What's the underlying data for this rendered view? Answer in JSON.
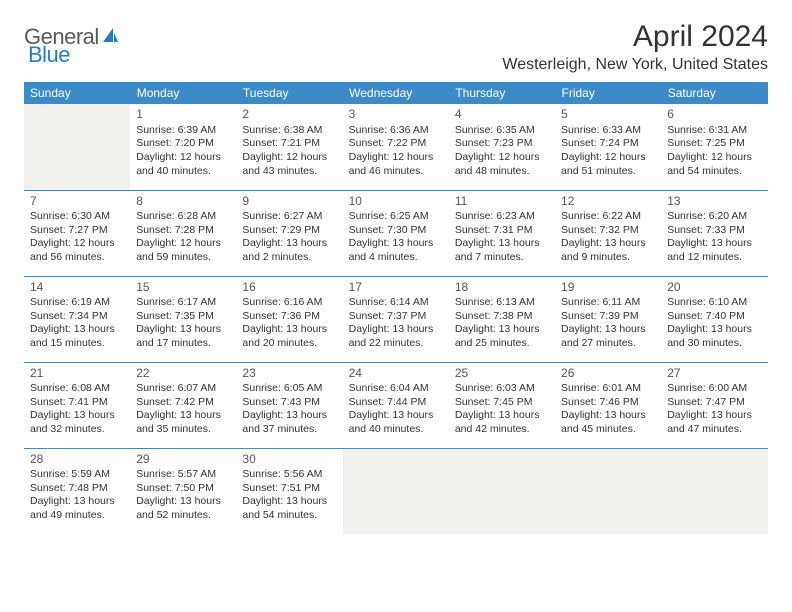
{
  "logo": {
    "part1": "General",
    "part2": "Blue"
  },
  "title": "April 2024",
  "location": "Westerleigh, New York, United States",
  "colors": {
    "header_bg": "#3b8bc9",
    "header_text": "#ffffff",
    "rule": "#3b8bc9",
    "empty_bg": "#f3f1ee",
    "text": "#333333",
    "logo_gray": "#5a5a5a",
    "logo_blue": "#2b7bbf"
  },
  "daysOfWeek": [
    "Sunday",
    "Monday",
    "Tuesday",
    "Wednesday",
    "Thursday",
    "Friday",
    "Saturday"
  ],
  "weeks": [
    [
      null,
      {
        "n": "1",
        "sr": "Sunrise: 6:39 AM",
        "ss": "Sunset: 7:20 PM",
        "d1": "Daylight: 12 hours",
        "d2": "and 40 minutes."
      },
      {
        "n": "2",
        "sr": "Sunrise: 6:38 AM",
        "ss": "Sunset: 7:21 PM",
        "d1": "Daylight: 12 hours",
        "d2": "and 43 minutes."
      },
      {
        "n": "3",
        "sr": "Sunrise: 6:36 AM",
        "ss": "Sunset: 7:22 PM",
        "d1": "Daylight: 12 hours",
        "d2": "and 46 minutes."
      },
      {
        "n": "4",
        "sr": "Sunrise: 6:35 AM",
        "ss": "Sunset: 7:23 PM",
        "d1": "Daylight: 12 hours",
        "d2": "and 48 minutes."
      },
      {
        "n": "5",
        "sr": "Sunrise: 6:33 AM",
        "ss": "Sunset: 7:24 PM",
        "d1": "Daylight: 12 hours",
        "d2": "and 51 minutes."
      },
      {
        "n": "6",
        "sr": "Sunrise: 6:31 AM",
        "ss": "Sunset: 7:25 PM",
        "d1": "Daylight: 12 hours",
        "d2": "and 54 minutes."
      }
    ],
    [
      {
        "n": "7",
        "sr": "Sunrise: 6:30 AM",
        "ss": "Sunset: 7:27 PM",
        "d1": "Daylight: 12 hours",
        "d2": "and 56 minutes."
      },
      {
        "n": "8",
        "sr": "Sunrise: 6:28 AM",
        "ss": "Sunset: 7:28 PM",
        "d1": "Daylight: 12 hours",
        "d2": "and 59 minutes."
      },
      {
        "n": "9",
        "sr": "Sunrise: 6:27 AM",
        "ss": "Sunset: 7:29 PM",
        "d1": "Daylight: 13 hours",
        "d2": "and 2 minutes."
      },
      {
        "n": "10",
        "sr": "Sunrise: 6:25 AM",
        "ss": "Sunset: 7:30 PM",
        "d1": "Daylight: 13 hours",
        "d2": "and 4 minutes."
      },
      {
        "n": "11",
        "sr": "Sunrise: 6:23 AM",
        "ss": "Sunset: 7:31 PM",
        "d1": "Daylight: 13 hours",
        "d2": "and 7 minutes."
      },
      {
        "n": "12",
        "sr": "Sunrise: 6:22 AM",
        "ss": "Sunset: 7:32 PM",
        "d1": "Daylight: 13 hours",
        "d2": "and 9 minutes."
      },
      {
        "n": "13",
        "sr": "Sunrise: 6:20 AM",
        "ss": "Sunset: 7:33 PM",
        "d1": "Daylight: 13 hours",
        "d2": "and 12 minutes."
      }
    ],
    [
      {
        "n": "14",
        "sr": "Sunrise: 6:19 AM",
        "ss": "Sunset: 7:34 PM",
        "d1": "Daylight: 13 hours",
        "d2": "and 15 minutes."
      },
      {
        "n": "15",
        "sr": "Sunrise: 6:17 AM",
        "ss": "Sunset: 7:35 PM",
        "d1": "Daylight: 13 hours",
        "d2": "and 17 minutes."
      },
      {
        "n": "16",
        "sr": "Sunrise: 6:16 AM",
        "ss": "Sunset: 7:36 PM",
        "d1": "Daylight: 13 hours",
        "d2": "and 20 minutes."
      },
      {
        "n": "17",
        "sr": "Sunrise: 6:14 AM",
        "ss": "Sunset: 7:37 PM",
        "d1": "Daylight: 13 hours",
        "d2": "and 22 minutes."
      },
      {
        "n": "18",
        "sr": "Sunrise: 6:13 AM",
        "ss": "Sunset: 7:38 PM",
        "d1": "Daylight: 13 hours",
        "d2": "and 25 minutes."
      },
      {
        "n": "19",
        "sr": "Sunrise: 6:11 AM",
        "ss": "Sunset: 7:39 PM",
        "d1": "Daylight: 13 hours",
        "d2": "and 27 minutes."
      },
      {
        "n": "20",
        "sr": "Sunrise: 6:10 AM",
        "ss": "Sunset: 7:40 PM",
        "d1": "Daylight: 13 hours",
        "d2": "and 30 minutes."
      }
    ],
    [
      {
        "n": "21",
        "sr": "Sunrise: 6:08 AM",
        "ss": "Sunset: 7:41 PM",
        "d1": "Daylight: 13 hours",
        "d2": "and 32 minutes."
      },
      {
        "n": "22",
        "sr": "Sunrise: 6:07 AM",
        "ss": "Sunset: 7:42 PM",
        "d1": "Daylight: 13 hours",
        "d2": "and 35 minutes."
      },
      {
        "n": "23",
        "sr": "Sunrise: 6:05 AM",
        "ss": "Sunset: 7:43 PM",
        "d1": "Daylight: 13 hours",
        "d2": "and 37 minutes."
      },
      {
        "n": "24",
        "sr": "Sunrise: 6:04 AM",
        "ss": "Sunset: 7:44 PM",
        "d1": "Daylight: 13 hours",
        "d2": "and 40 minutes."
      },
      {
        "n": "25",
        "sr": "Sunrise: 6:03 AM",
        "ss": "Sunset: 7:45 PM",
        "d1": "Daylight: 13 hours",
        "d2": "and 42 minutes."
      },
      {
        "n": "26",
        "sr": "Sunrise: 6:01 AM",
        "ss": "Sunset: 7:46 PM",
        "d1": "Daylight: 13 hours",
        "d2": "and 45 minutes."
      },
      {
        "n": "27",
        "sr": "Sunrise: 6:00 AM",
        "ss": "Sunset: 7:47 PM",
        "d1": "Daylight: 13 hours",
        "d2": "and 47 minutes."
      }
    ],
    [
      {
        "n": "28",
        "sr": "Sunrise: 5:59 AM",
        "ss": "Sunset: 7:48 PM",
        "d1": "Daylight: 13 hours",
        "d2": "and 49 minutes."
      },
      {
        "n": "29",
        "sr": "Sunrise: 5:57 AM",
        "ss": "Sunset: 7:50 PM",
        "d1": "Daylight: 13 hours",
        "d2": "and 52 minutes."
      },
      {
        "n": "30",
        "sr": "Sunrise: 5:56 AM",
        "ss": "Sunset: 7:51 PM",
        "d1": "Daylight: 13 hours",
        "d2": "and 54 minutes."
      },
      null,
      null,
      null,
      null
    ]
  ]
}
